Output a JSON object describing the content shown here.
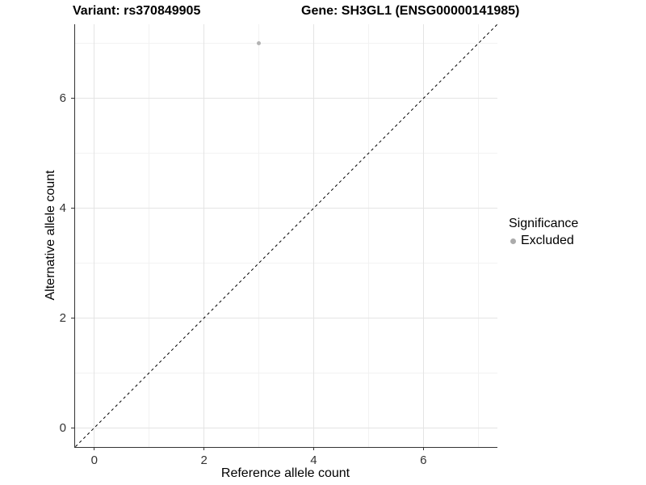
{
  "header": {
    "variant_title": "Variant: rs370849905",
    "gene_title": "Gene: SH3GL1 (ENSG00000141985)"
  },
  "chart_data": {
    "type": "scatter",
    "xlabel": "Reference allele count",
    "ylabel": "Alternative allele count",
    "xlim": [
      -0.35,
      7.35
    ],
    "ylim": [
      -0.35,
      7.35
    ],
    "xticks": [
      0,
      2,
      4,
      6
    ],
    "yticks": [
      0,
      2,
      4,
      6
    ],
    "x_minor_ticks": [
      1,
      3,
      5,
      7
    ],
    "y_minor_ticks": [
      1,
      3,
      5,
      7
    ],
    "grid": true,
    "points": [
      {
        "x": 3,
        "y": 7,
        "series": "Excluded"
      }
    ],
    "identity_line": {
      "equation": "y = x",
      "style": "dashed",
      "from": [
        -1,
        -1
      ],
      "to": [
        9,
        9
      ]
    },
    "legend": {
      "title": "Significance",
      "position": "right",
      "entries": [
        {
          "label": "Excluded",
          "color": "#ababab"
        }
      ]
    }
  },
  "colors": {
    "point": "#b3b3b3",
    "axis_line": "#333333",
    "tick_text": "#333333",
    "grid_major": "#e4e4e4",
    "grid_minor": "#f2f2f2",
    "identity_line": "#000000",
    "background": "#ffffff"
  }
}
